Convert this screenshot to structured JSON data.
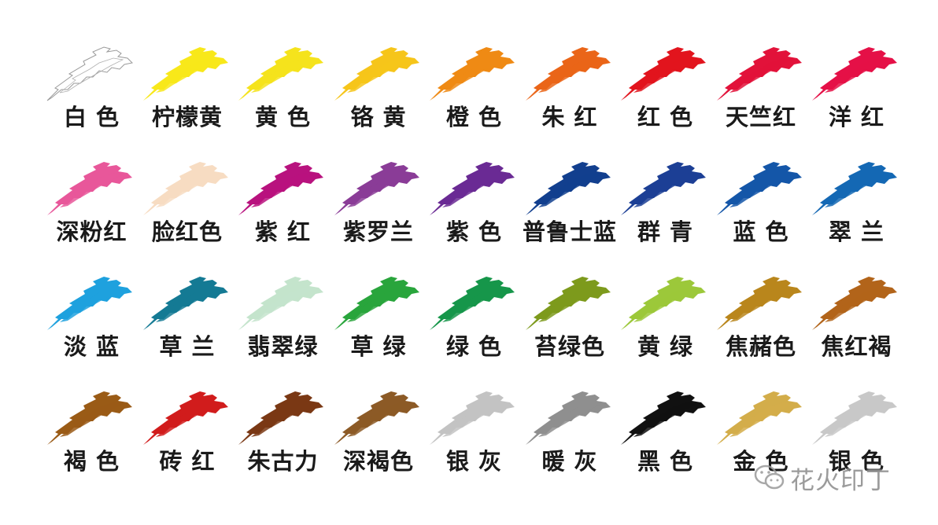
{
  "swatches": [
    {
      "label": "白 色",
      "color": "#ffffff",
      "outline": true
    },
    {
      "label": "柠檬黄",
      "color": "#f8e81a"
    },
    {
      "label": "黄 色",
      "color": "#f5e31c"
    },
    {
      "label": "铬 黄",
      "color": "#f6c51a"
    },
    {
      "label": "橙 色",
      "color": "#ef8a14"
    },
    {
      "label": "朱 红",
      "color": "#ea6518"
    },
    {
      "label": "红 色",
      "color": "#e2141d"
    },
    {
      "label": "天竺红",
      "color": "#e2123a"
    },
    {
      "label": "洋 红",
      "color": "#e51047"
    },
    {
      "label": "深粉红",
      "color": "#e8579a"
    },
    {
      "label": "脸红色",
      "color": "#f7dcc2"
    },
    {
      "label": "紫 红",
      "color": "#b8127e"
    },
    {
      "label": "紫罗兰",
      "color": "#8a3c97"
    },
    {
      "label": "紫 色",
      "color": "#6a2a94"
    },
    {
      "label": "普鲁士蓝",
      "color": "#123f8e"
    },
    {
      "label": "群 青",
      "color": "#1c3f95"
    },
    {
      "label": "蓝 色",
      "color": "#1456a8"
    },
    {
      "label": "翠 兰",
      "color": "#1468b4"
    },
    {
      "label": "淡 蓝",
      "color": "#1ea1de"
    },
    {
      "label": "草 兰",
      "color": "#147a94"
    },
    {
      "label": "翡翠绿",
      "color": "#c4e4cc"
    },
    {
      "label": "草 绿",
      "color": "#29a53c"
    },
    {
      "label": "绿 色",
      "color": "#16964a"
    },
    {
      "label": "苔绿色",
      "color": "#7d9a1c"
    },
    {
      "label": "黄 绿",
      "color": "#9cc83a"
    },
    {
      "label": "焦赭色",
      "color": "#b9861c"
    },
    {
      "label": "焦红褐",
      "color": "#b2641a"
    },
    {
      "label": "褐 色",
      "color": "#9a5b16"
    },
    {
      "label": "砖 红",
      "color": "#d11c1c"
    },
    {
      "label": "朱古力",
      "color": "#7a3814"
    },
    {
      "label": "深褐色",
      "color": "#8c5a26"
    },
    {
      "label": "银 灰",
      "color": "#c3c3c3"
    },
    {
      "label": "暖 灰",
      "color": "#8f8f8f"
    },
    {
      "label": "黑 色",
      "color": "#111111"
    },
    {
      "label": "金 色",
      "color": "#d3ad4a"
    },
    {
      "label": "银 色",
      "color": "#c8c8c8"
    }
  ],
  "watermark": {
    "text": "花火印丁",
    "icon": "wechat-icon"
  }
}
